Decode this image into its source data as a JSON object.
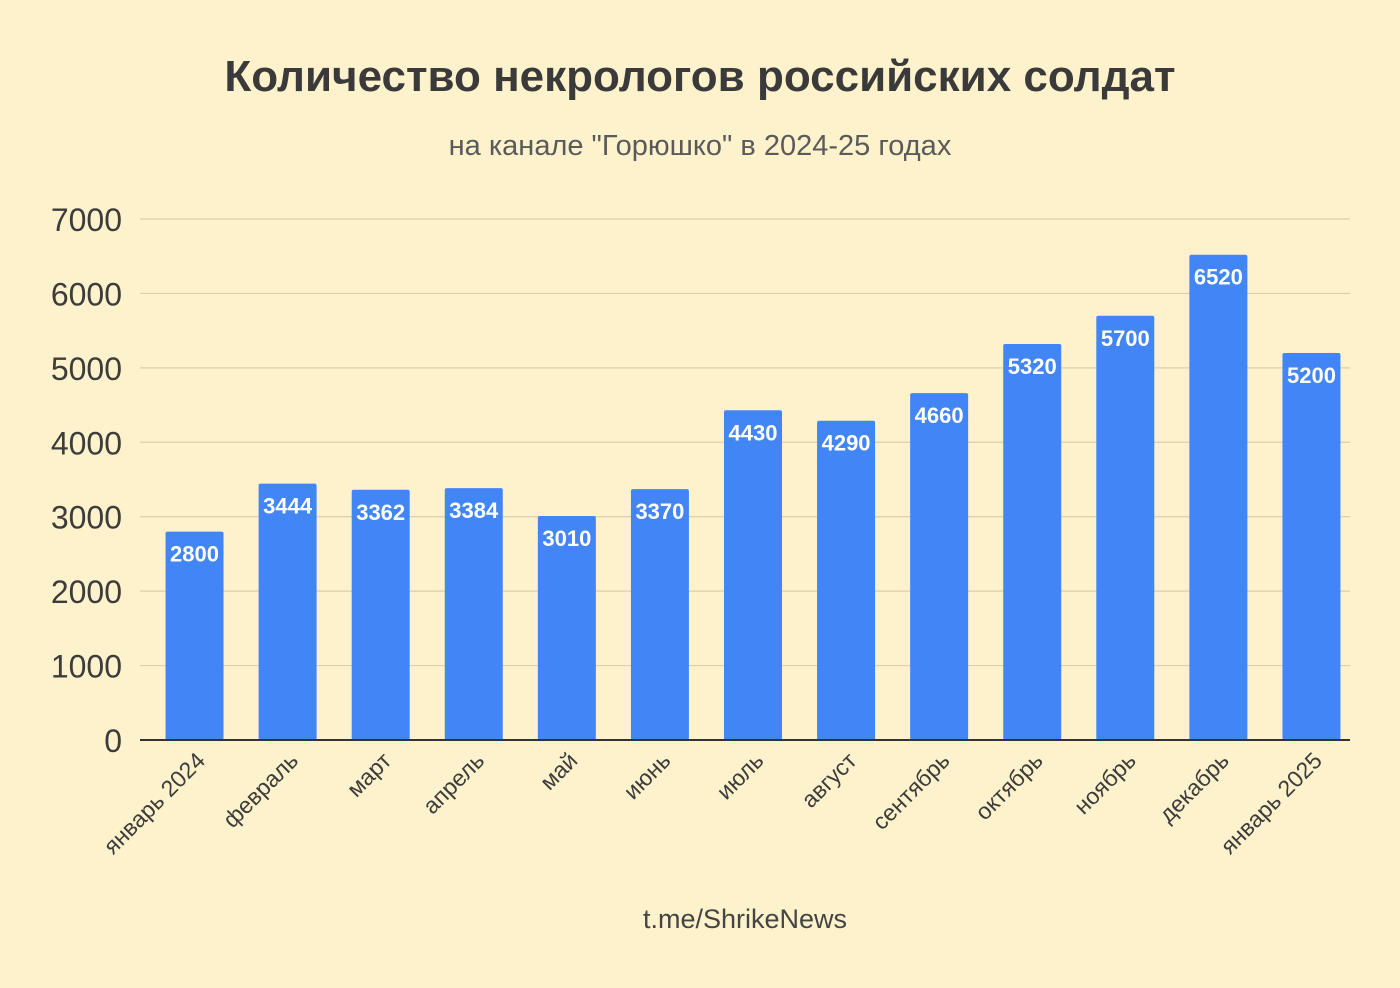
{
  "title": "Количество некрологов российских солдат",
  "subtitle": "на канале \"Горюшко\" в 2024-25 годах",
  "footer": "t.me/ShrikeNews",
  "colors": {
    "background": "#fef2cc",
    "bar": "#4285f4",
    "gridline": "#d9cfa8",
    "axis": "#333333",
    "label_text": "#ffffff"
  },
  "chart_data": {
    "type": "bar",
    "categories": [
      "январь 2024",
      "февраль",
      "март",
      "апрель",
      "май",
      "июнь",
      "июль",
      "август",
      "сентябрь",
      "октябрь",
      "ноябрь",
      "декабрь",
      "январь 2025"
    ],
    "values": [
      2800,
      3444,
      3362,
      3384,
      3010,
      3370,
      4430,
      4290,
      4660,
      5320,
      5700,
      6520,
      5200
    ],
    "ylim": [
      0,
      7000
    ],
    "yticks": [
      0,
      1000,
      2000,
      3000,
      4000,
      5000,
      6000,
      7000
    ],
    "xlabel": "",
    "ylabel": "",
    "grid": true,
    "legend": "none",
    "data_labels": true
  }
}
